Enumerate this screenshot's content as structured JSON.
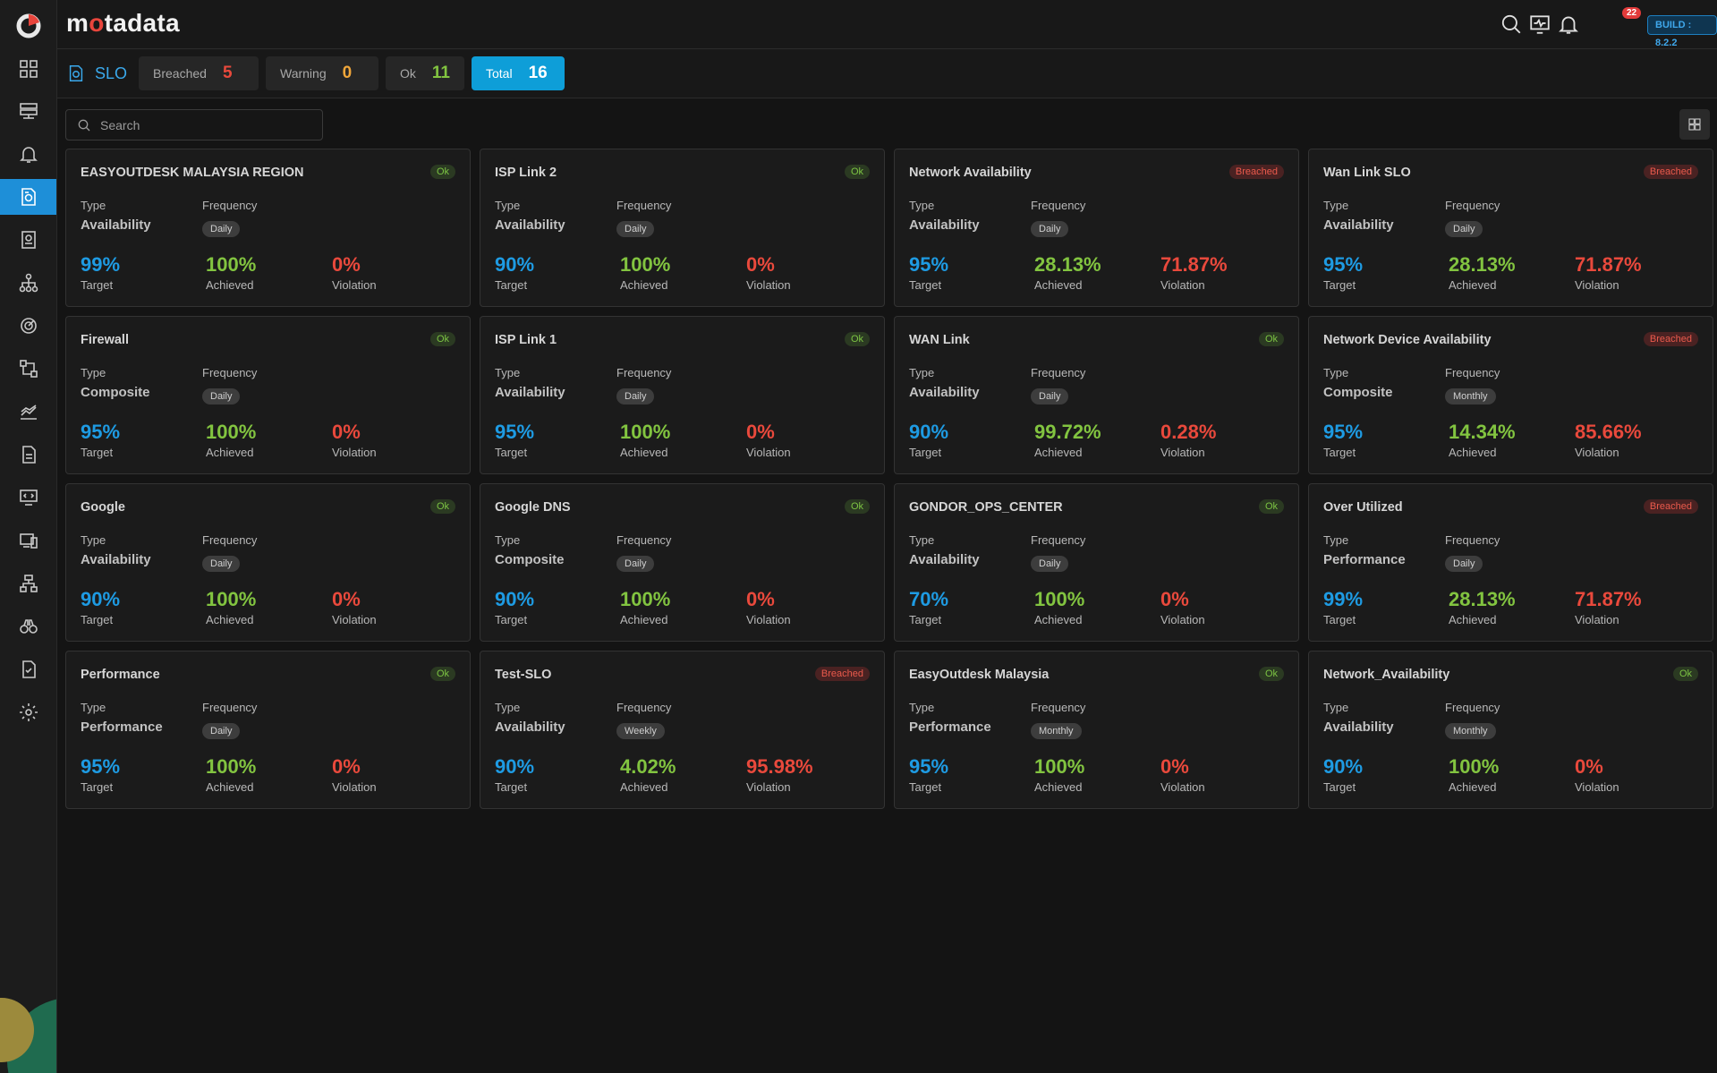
{
  "app": {
    "brand_pre": "m",
    "brand_dot": "o",
    "brand_post": "tadata",
    "build": "BUILD : 8.2.2",
    "notification_count": "22"
  },
  "sidebar": {
    "items": [
      {
        "icon": "dashboard-grid-icon"
      },
      {
        "icon": "server-list-icon"
      },
      {
        "icon": "bell-icon"
      },
      {
        "icon": "slo-document-icon",
        "active": true
      },
      {
        "icon": "report-icon"
      },
      {
        "icon": "topology-icon"
      },
      {
        "icon": "radar-icon"
      },
      {
        "icon": "flow-icon"
      },
      {
        "icon": "metrics-chart-icon"
      },
      {
        "icon": "file-icon"
      },
      {
        "icon": "monitor-code-icon"
      },
      {
        "icon": "devices-icon"
      },
      {
        "icon": "network-map-icon"
      },
      {
        "icon": "binoculars-icon"
      },
      {
        "icon": "checklist-icon"
      },
      {
        "icon": "settings-gear-icon"
      }
    ]
  },
  "page": {
    "title": "SLO",
    "search_placeholder": "Search",
    "stats": {
      "breached_label": "Breached",
      "breached_count": "5",
      "warning_label": "Warning",
      "warning_count": "0",
      "ok_label": "Ok",
      "ok_count": "11",
      "total_label": "Total",
      "total_count": "16"
    },
    "colors": {
      "accent": "#1e9be3",
      "ok": "#82c440",
      "breached": "#e9493c",
      "warning": "#f0a63a"
    }
  },
  "labels": {
    "type": "Type",
    "frequency": "Frequency",
    "target": "Target",
    "achieved": "Achieved",
    "violation": "Violation"
  },
  "cards": [
    {
      "name": "EASYOUTDESK MALAYSIA REGION",
      "status": "Ok",
      "type": "Availability",
      "frequency": "Daily",
      "target": "99%",
      "achieved": "100%",
      "violation": "0%"
    },
    {
      "name": "ISP Link 2",
      "status": "Ok",
      "type": "Availability",
      "frequency": "Daily",
      "target": "90%",
      "achieved": "100%",
      "violation": "0%"
    },
    {
      "name": "Network Availability",
      "status": "Breached",
      "type": "Availability",
      "frequency": "Daily",
      "target": "95%",
      "achieved": "28.13%",
      "violation": "71.87%"
    },
    {
      "name": "Wan Link SLO",
      "status": "Breached",
      "type": "Availability",
      "frequency": "Daily",
      "target": "95%",
      "achieved": "28.13%",
      "violation": "71.87%"
    },
    {
      "name": "Firewall",
      "status": "Ok",
      "type": "Composite",
      "frequency": "Daily",
      "target": "95%",
      "achieved": "100%",
      "violation": "0%"
    },
    {
      "name": "ISP Link 1",
      "status": "Ok",
      "type": "Availability",
      "frequency": "Daily",
      "target": "95%",
      "achieved": "100%",
      "violation": "0%"
    },
    {
      "name": "WAN Link",
      "status": "Ok",
      "type": "Availability",
      "frequency": "Daily",
      "target": "90%",
      "achieved": "99.72%",
      "violation": "0.28%"
    },
    {
      "name": "Network Device Availability",
      "status": "Breached",
      "type": "Composite",
      "frequency": "Monthly",
      "target": "95%",
      "achieved": "14.34%",
      "violation": "85.66%"
    },
    {
      "name": "Google",
      "status": "Ok",
      "type": "Availability",
      "frequency": "Daily",
      "target": "90%",
      "achieved": "100%",
      "violation": "0%"
    },
    {
      "name": "Google DNS",
      "status": "Ok",
      "type": "Composite",
      "frequency": "Daily",
      "target": "90%",
      "achieved": "100%",
      "violation": "0%"
    },
    {
      "name": "GONDOR_OPS_CENTER",
      "status": "Ok",
      "type": "Availability",
      "frequency": "Daily",
      "target": "70%",
      "achieved": "100%",
      "violation": "0%"
    },
    {
      "name": "Over Utilized",
      "status": "Breached",
      "type": "Performance",
      "frequency": "Daily",
      "target": "99%",
      "achieved": "28.13%",
      "violation": "71.87%"
    },
    {
      "name": "Performance",
      "status": "Ok",
      "type": "Performance",
      "frequency": "Daily",
      "target": "95%",
      "achieved": "100%",
      "violation": "0%"
    },
    {
      "name": "Test-SLO",
      "status": "Breached",
      "type": "Availability",
      "frequency": "Weekly",
      "target": "90%",
      "achieved": "4.02%",
      "violation": "95.98%"
    },
    {
      "name": "EasyOutdesk Malaysia",
      "status": "Ok",
      "type": "Performance",
      "frequency": "Monthly",
      "target": "95%",
      "achieved": "100%",
      "violation": "0%"
    },
    {
      "name": "Network_Availability",
      "status": "Ok",
      "type": "Availability",
      "frequency": "Monthly",
      "target": "90%",
      "achieved": "100%",
      "violation": "0%"
    }
  ]
}
